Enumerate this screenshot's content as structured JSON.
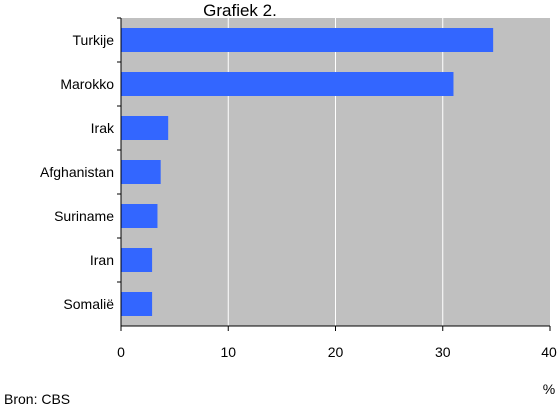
{
  "chart_data": {
    "type": "bar",
    "orientation": "horizontal",
    "title": "Grafiek 2.",
    "categories": [
      "Turkije",
      "Marokko",
      "Irak",
      "Afghanistan",
      "Suriname",
      "Iran",
      "Somalië"
    ],
    "values": [
      34.7,
      31.0,
      4.4,
      3.7,
      3.4,
      2.9,
      2.9
    ],
    "xlim": [
      0,
      40
    ],
    "xticks": [
      "0",
      "10",
      "20",
      "30",
      "40"
    ],
    "xunit": "%",
    "grid": true,
    "source": "Bron: CBS",
    "colors": {
      "bar": "#3366ff",
      "plot_bg": "#c0c0c0",
      "grid": "#ffffff",
      "page_bg": "#ffffff"
    }
  }
}
